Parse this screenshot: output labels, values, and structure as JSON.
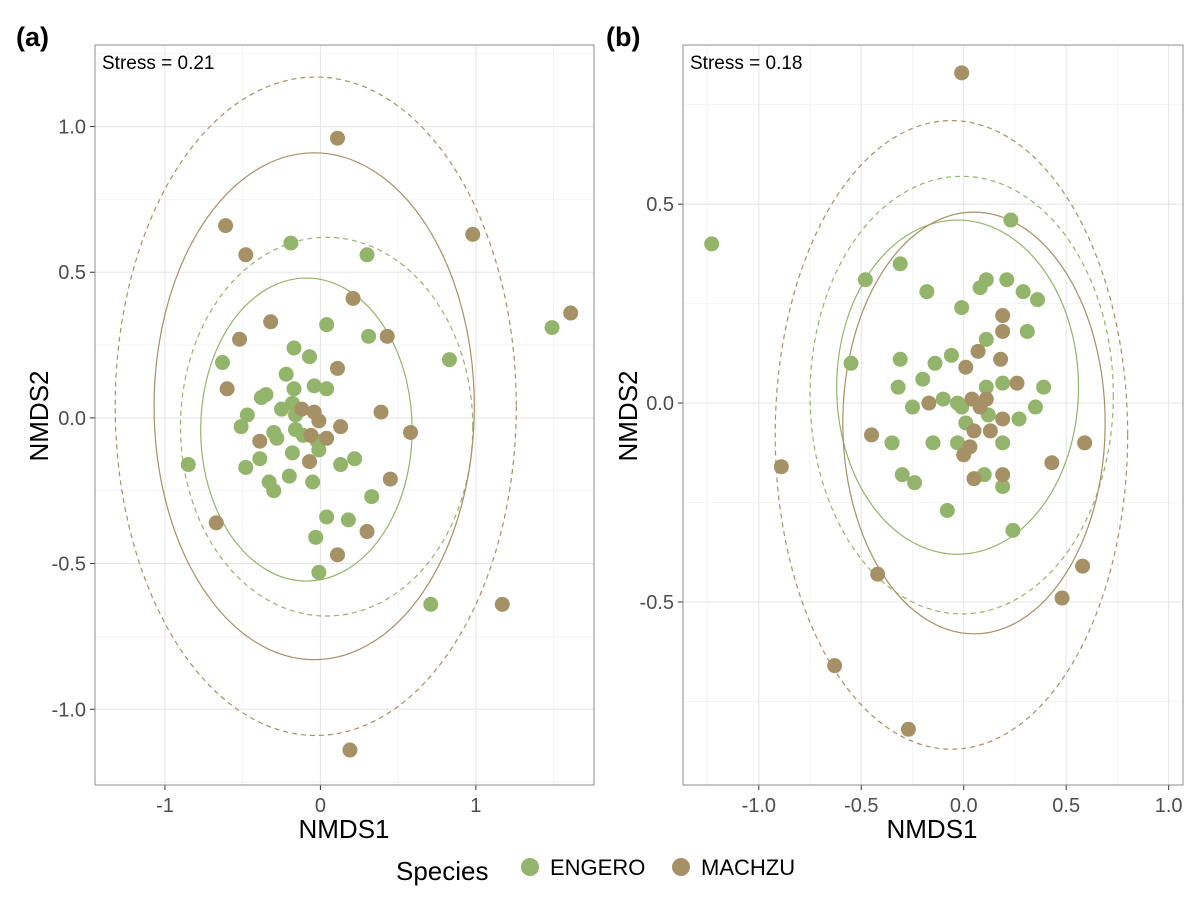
{
  "colors": {
    "ENGERO": "#93b46b",
    "MACHZU": "#a69066"
  },
  "legend": {
    "title": "Species",
    "entries": [
      {
        "label": "ENGERO",
        "color": "#93b46b"
      },
      {
        "label": "MACHZU",
        "color": "#a69066"
      }
    ]
  },
  "chart_data": [
    {
      "type": "scatter",
      "panel_label": "(a)",
      "annotation": "Stress =  0.21",
      "xlabel": "NMDS1",
      "ylabel": "NMDS2",
      "xlim": [
        -1.45,
        1.76
      ],
      "ylim": [
        -1.26,
        1.28
      ],
      "xticks": [
        -1,
        0,
        1
      ],
      "xtick_labels": [
        "-1",
        "0",
        "1"
      ],
      "yticks": [
        -1,
        -0.5,
        0,
        0.5,
        1
      ],
      "ytick_labels": [
        "-1.0",
        "-0.5",
        "0.0",
        "0.5",
        "1.0"
      ],
      "grid": true,
      "series": [
        {
          "name": "ENGERO",
          "color": "#93b46b",
          "points": [
            [
              -0.19,
              0.6
            ],
            [
              0.3,
              0.56
            ],
            [
              -0.63,
              0.19
            ],
            [
              0.04,
              0.32
            ],
            [
              0.31,
              0.28
            ],
            [
              0.83,
              0.2
            ],
            [
              1.49,
              0.31
            ],
            [
              -0.17,
              0.24
            ],
            [
              -0.07,
              0.21
            ],
            [
              -0.22,
              0.15
            ],
            [
              -0.35,
              0.08
            ],
            [
              -0.38,
              0.07
            ],
            [
              -0.17,
              0.1
            ],
            [
              -0.04,
              0.11
            ],
            [
              0.04,
              0.1
            ],
            [
              -0.18,
              0.05
            ],
            [
              -0.16,
              0.01
            ],
            [
              -0.25,
              0.03
            ],
            [
              -0.47,
              0.01
            ],
            [
              -0.51,
              -0.03
            ],
            [
              -0.16,
              -0.04
            ],
            [
              -0.11,
              -0.06
            ],
            [
              -0.3,
              -0.05
            ],
            [
              -0.28,
              -0.07
            ],
            [
              -0.02,
              -0.08
            ],
            [
              -0.01,
              -0.11
            ],
            [
              -0.39,
              -0.14
            ],
            [
              -0.18,
              -0.12
            ],
            [
              0.13,
              -0.16
            ],
            [
              0.22,
              -0.14
            ],
            [
              -0.48,
              -0.17
            ],
            [
              -0.85,
              -0.16
            ],
            [
              -0.33,
              -0.22
            ],
            [
              -0.3,
              -0.25
            ],
            [
              -0.2,
              -0.2
            ],
            [
              -0.05,
              -0.22
            ],
            [
              0.33,
              -0.27
            ],
            [
              0.04,
              -0.34
            ],
            [
              0.18,
              -0.35
            ],
            [
              -0.03,
              -0.41
            ],
            [
              -0.01,
              -0.53
            ],
            [
              0.71,
              -0.64
            ]
          ]
        },
        {
          "name": "MACHZU",
          "color": "#a69066",
          "points": [
            [
              0.11,
              0.96
            ],
            [
              -0.61,
              0.66
            ],
            [
              0.98,
              0.63
            ],
            [
              -0.48,
              0.56
            ],
            [
              0.21,
              0.41
            ],
            [
              1.61,
              0.36
            ],
            [
              -0.32,
              0.33
            ],
            [
              -0.52,
              0.27
            ],
            [
              0.43,
              0.28
            ],
            [
              0.11,
              0.17
            ],
            [
              -0.6,
              0.1
            ],
            [
              -0.12,
              0.03
            ],
            [
              -0.04,
              0.02
            ],
            [
              -0.01,
              -0.01
            ],
            [
              0.39,
              0.02
            ],
            [
              0.13,
              -0.03
            ],
            [
              0.58,
              -0.05
            ],
            [
              -0.39,
              -0.08
            ],
            [
              0.04,
              -0.07
            ],
            [
              -0.06,
              -0.06
            ],
            [
              -0.07,
              -0.15
            ],
            [
              0.45,
              -0.21
            ],
            [
              0.3,
              -0.39
            ],
            [
              0.11,
              -0.47
            ],
            [
              -0.67,
              -0.36
            ],
            [
              1.17,
              -0.64
            ],
            [
              0.19,
              -1.14
            ]
          ]
        }
      ],
      "ellipses": [
        {
          "species": "ENGERO",
          "style": "solid",
          "center": [
            -0.09,
            -0.04
          ],
          "semi_axes": [
            0.68,
            0.52
          ]
        },
        {
          "species": "ENGERO",
          "style": "dashed",
          "center": [
            0.04,
            -0.03
          ],
          "semi_axes": [
            0.94,
            0.65
          ]
        },
        {
          "species": "MACHZU",
          "style": "solid",
          "center": [
            -0.04,
            0.04
          ],
          "semi_axes": [
            1.03,
            0.87
          ]
        },
        {
          "species": "MACHZU",
          "style": "dashed",
          "center": [
            -0.03,
            0.04
          ],
          "semi_axes": [
            1.29,
            1.13
          ]
        }
      ]
    },
    {
      "type": "scatter",
      "panel_label": "(b)",
      "annotation": "Stress =  0.18",
      "xlabel": "NMDS1",
      "ylabel": "NMDS2",
      "xlim": [
        -1.37,
        1.07
      ],
      "ylim": [
        -0.96,
        0.9
      ],
      "xticks": [
        -1.0,
        -0.5,
        0.0,
        0.5,
        1.0
      ],
      "xtick_labels": [
        "-1.0",
        "-0.5",
        "0.0",
        "0.5",
        "1.0"
      ],
      "yticks": [
        -0.5,
        0.0,
        0.5
      ],
      "ytick_labels": [
        "-0.5",
        "0.0",
        "0.5"
      ],
      "grid": true,
      "series": [
        {
          "name": "ENGERO",
          "color": "#93b46b",
          "points": [
            [
              -1.23,
              0.4
            ],
            [
              0.23,
              0.46
            ],
            [
              -0.31,
              0.35
            ],
            [
              -0.48,
              0.31
            ],
            [
              0.11,
              0.31
            ],
            [
              0.21,
              0.31
            ],
            [
              -0.18,
              0.28
            ],
            [
              0.08,
              0.29
            ],
            [
              0.29,
              0.28
            ],
            [
              0.36,
              0.26
            ],
            [
              -0.01,
              0.24
            ],
            [
              0.31,
              0.18
            ],
            [
              0.11,
              0.16
            ],
            [
              -0.55,
              0.1
            ],
            [
              -0.31,
              0.11
            ],
            [
              -0.14,
              0.1
            ],
            [
              -0.06,
              0.12
            ],
            [
              -0.2,
              0.06
            ],
            [
              0.11,
              0.04
            ],
            [
              0.19,
              0.05
            ],
            [
              0.39,
              0.04
            ],
            [
              -0.32,
              0.04
            ],
            [
              -0.1,
              0.01
            ],
            [
              -0.03,
              0.0
            ],
            [
              -0.01,
              -0.01
            ],
            [
              -0.25,
              -0.01
            ],
            [
              0.35,
              -0.01
            ],
            [
              0.01,
              -0.05
            ],
            [
              0.12,
              -0.03
            ],
            [
              0.27,
              -0.04
            ],
            [
              -0.35,
              -0.1
            ],
            [
              -0.15,
              -0.1
            ],
            [
              -0.03,
              -0.1
            ],
            [
              0.19,
              -0.1
            ],
            [
              -0.3,
              -0.18
            ],
            [
              -0.24,
              -0.2
            ],
            [
              0.1,
              -0.18
            ],
            [
              0.19,
              -0.21
            ],
            [
              -0.08,
              -0.27
            ],
            [
              0.24,
              -0.32
            ]
          ]
        },
        {
          "name": "MACHZU",
          "color": "#a69066",
          "points": [
            [
              -0.01,
              0.83
            ],
            [
              0.19,
              0.22
            ],
            [
              0.19,
              0.18
            ],
            [
              0.07,
              0.13
            ],
            [
              0.18,
              0.11
            ],
            [
              0.01,
              0.09
            ],
            [
              0.26,
              0.05
            ],
            [
              0.04,
              0.01
            ],
            [
              0.11,
              0.01
            ],
            [
              0.08,
              -0.01
            ],
            [
              -0.17,
              -0.0
            ],
            [
              0.19,
              -0.04
            ],
            [
              0.05,
              -0.07
            ],
            [
              0.13,
              -0.07
            ],
            [
              -0.45,
              -0.08
            ],
            [
              0.03,
              -0.11
            ],
            [
              0.0,
              -0.13
            ],
            [
              0.59,
              -0.1
            ],
            [
              0.43,
              -0.15
            ],
            [
              -0.89,
              -0.16
            ],
            [
              0.05,
              -0.19
            ],
            [
              0.19,
              -0.18
            ],
            [
              -0.42,
              -0.43
            ],
            [
              0.58,
              -0.41
            ],
            [
              0.48,
              -0.49
            ],
            [
              -0.63,
              -0.66
            ],
            [
              -0.27,
              -0.82
            ]
          ]
        }
      ],
      "ellipses": [
        {
          "species": "ENGERO",
          "style": "solid",
          "center": [
            -0.03,
            0.04
          ],
          "semi_axes": [
            0.59,
            0.42
          ]
        },
        {
          "species": "ENGERO",
          "style": "dashed",
          "center": [
            -0.01,
            0.02
          ],
          "semi_axes": [
            0.74,
            0.55
          ]
        },
        {
          "species": "MACHZU",
          "style": "solid",
          "center": [
            0.05,
            -0.05
          ],
          "semi_axes": [
            0.64,
            0.53
          ]
        },
        {
          "species": "MACHZU",
          "style": "dashed",
          "center": [
            -0.06,
            -0.08
          ],
          "semi_axes": [
            0.86,
            0.79
          ]
        }
      ]
    }
  ]
}
